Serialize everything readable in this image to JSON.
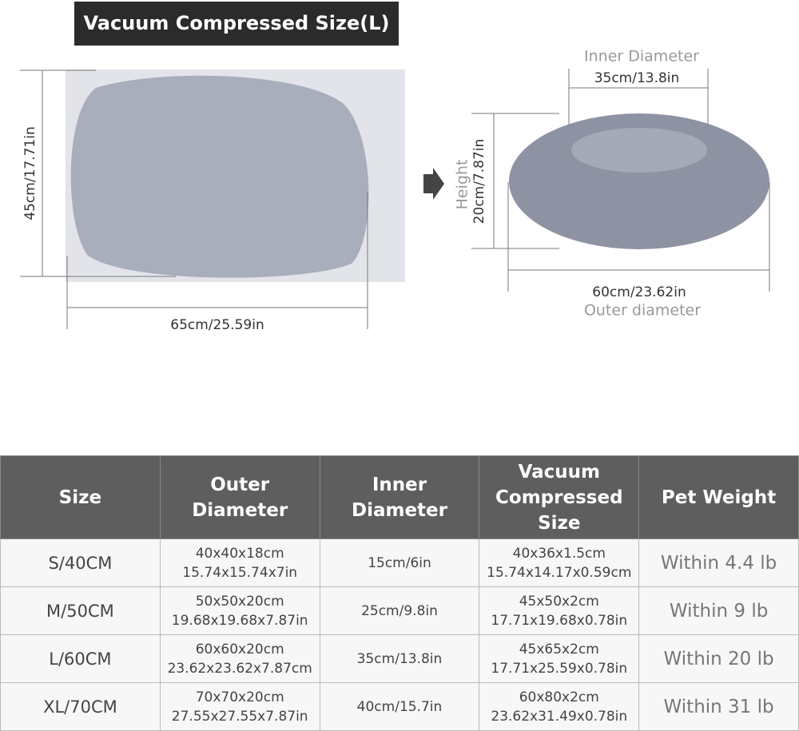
{
  "header": {
    "title": "Vacuum Compressed Size(L)"
  },
  "compressed": {
    "height": "45cm/17.71in",
    "width": "65cm/25.59in"
  },
  "bed": {
    "inner_label": "Inner Diameter",
    "inner": "35cm/13.8in",
    "height_label": "Height",
    "height": "20cm/7.87in",
    "outer": "60cm/23.62in",
    "outer_label": "Outer diameter"
  },
  "table": {
    "header": [
      [
        "Size"
      ],
      [
        "Outer",
        "Diameter"
      ],
      [
        "Inner",
        "Diameter"
      ],
      [
        "Vacuum",
        "Compressed",
        "Size"
      ],
      [
        "Pet Weight"
      ]
    ],
    "rows": [
      [
        [
          "S/40CM"
        ],
        [
          "40x40x18cm",
          "15.74x15.74x7in"
        ],
        [
          "15cm/6in"
        ],
        [
          "40x36x1.5cm",
          "15.74x14.17x0.59cm"
        ],
        [
          "Within 4.4 lb"
        ]
      ],
      [
        [
          "M/50CM"
        ],
        [
          "50x50x20cm",
          "19.68x19.68x7.87in"
        ],
        [
          "25cm/9.8in"
        ],
        [
          "45x50x2cm",
          "17.71x19.68x0.78in"
        ],
        [
          "Within 9 lb"
        ]
      ],
      [
        [
          "L/60CM"
        ],
        [
          "60x60x20cm",
          "23.62x23.62x7.87cm"
        ],
        [
          "35cm/13.8in"
        ],
        [
          "45x65x2cm",
          "17.71x25.59x0.78in"
        ],
        [
          "Within 20 lb"
        ]
      ],
      [
        [
          "XL/70CM"
        ],
        [
          "70x70x20cm",
          "27.55x27.55x7.87in"
        ],
        [
          "40cm/15.7in"
        ],
        [
          "60x80x2cm",
          "23.62x31.49x0.78in"
        ],
        [
          "Within 31 lb"
        ]
      ]
    ]
  }
}
